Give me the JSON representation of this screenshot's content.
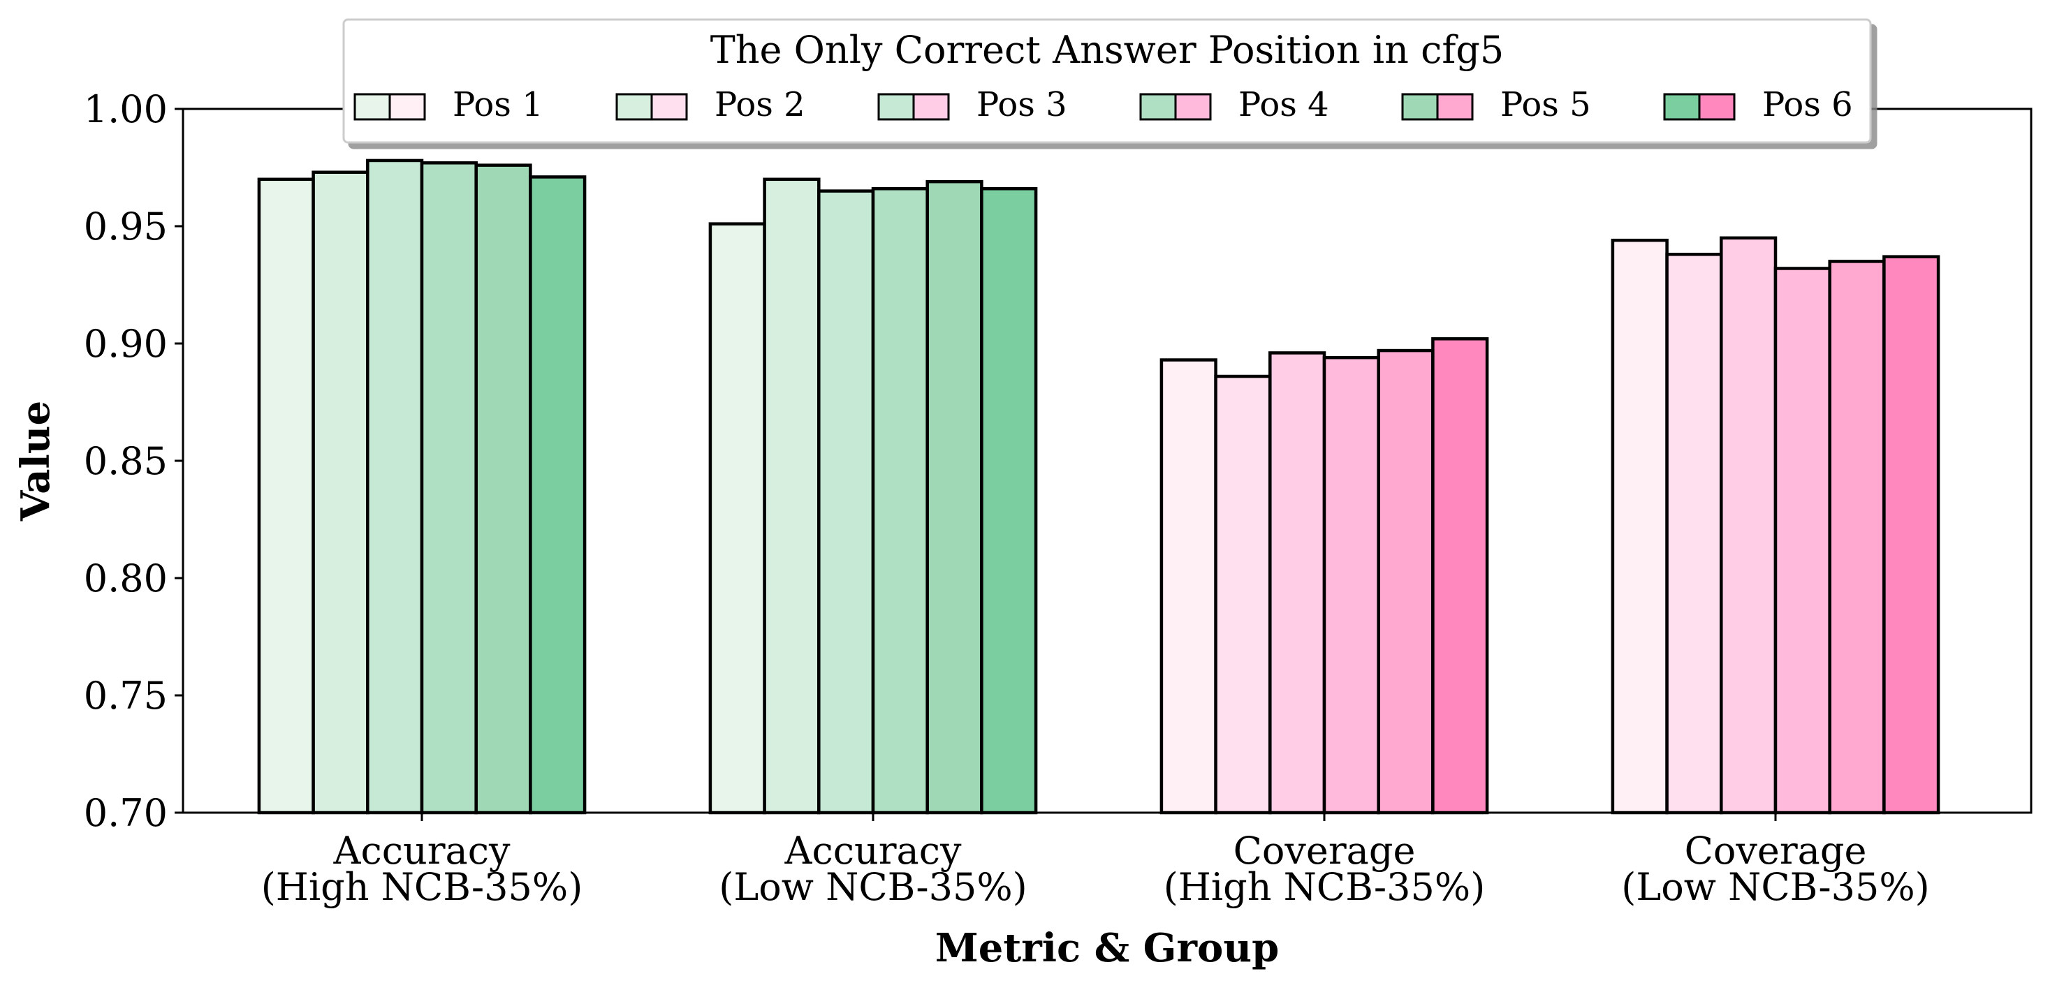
{
  "chart_data": {
    "type": "bar",
    "categories": [
      [
        "Accuracy",
        "(High NCB-35%)"
      ],
      [
        "Accuracy",
        "(Low NCB-35%)"
      ],
      [
        "Coverage",
        "(High NCB-35%)"
      ],
      [
        "Coverage",
        "(Low NCB-35%)"
      ]
    ],
    "series": [
      {
        "name": "Pos 1",
        "values": [
          0.97,
          0.951,
          0.893,
          0.944
        ]
      },
      {
        "name": "Pos 2",
        "values": [
          0.973,
          0.97,
          0.886,
          0.938
        ]
      },
      {
        "name": "Pos 3",
        "values": [
          0.978,
          0.965,
          0.896,
          0.945
        ]
      },
      {
        "name": "Pos 4",
        "values": [
          0.977,
          0.966,
          0.894,
          0.932
        ]
      },
      {
        "name": "Pos 5",
        "values": [
          0.976,
          0.969,
          0.897,
          0.935
        ]
      },
      {
        "name": "Pos 6",
        "values": [
          0.971,
          0.966,
          0.902,
          0.937
        ]
      }
    ],
    "xlabel": "Metric & Group",
    "ylabel": "Value",
    "ylim": [
      0.7,
      1.0
    ],
    "yticks": [
      "0.70",
      "0.75",
      "0.80",
      "0.85",
      "0.90",
      "0.95",
      "1.00"
    ],
    "legend": {
      "title": "The Only Correct Answer Position in cfg5",
      "placement": "top-center"
    },
    "grid": false,
    "colors": {
      "accuracy": [
        "#e8f5ea",
        "#d7efdf",
        "#c6e9d5",
        "#b0e0c4",
        "#9fd8b5",
        "#7acea0"
      ],
      "coverage": [
        "#fff0f5",
        "#ffe0ee",
        "#ffcde5",
        "#ffbadc",
        "#ffa8d0",
        "#ff88bf"
      ]
    }
  }
}
